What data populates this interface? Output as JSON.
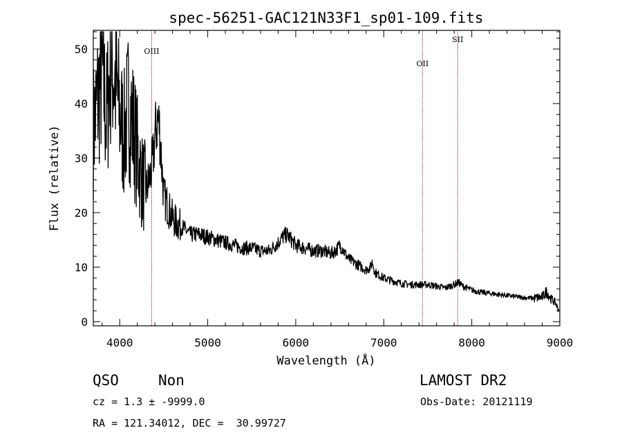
{
  "chart_data": {
    "type": "line",
    "title": "spec-56251-GAC121N33F1_sp01-109.fits",
    "xlabel": "Wavelength (Å)",
    "ylabel": "Flux (relative)",
    "xlim": [
      3700,
      9000
    ],
    "ylim": [
      0,
      55
    ],
    "x_ticks": [
      4000,
      5000,
      6000,
      7000,
      8000,
      9000
    ],
    "y_ticks": [
      0,
      10,
      20,
      30,
      40,
      50
    ],
    "grid": false,
    "line_color": "#000000",
    "series": [
      {
        "x": [
          3700,
          3750,
          3800,
          3850,
          3900,
          3950,
          4000,
          4050,
          4100,
          4150,
          4200,
          4250,
          4300,
          4350,
          4380,
          4400,
          4430,
          4450,
          4470,
          4500,
          4550,
          4600,
          4650,
          4700,
          4800,
          4900,
          5000,
          5100,
          5200,
          5300,
          5400,
          5500,
          5600,
          5700,
          5800,
          5850,
          5900,
          5950,
          6000,
          6100,
          6200,
          6300,
          6400,
          6450,
          6480,
          6500,
          6530,
          6560,
          6600,
          6700,
          6800,
          6850,
          6870,
          6900,
          7000,
          7100,
          7200,
          7300,
          7400,
          7500,
          7600,
          7700,
          7800,
          7850,
          7900,
          8000,
          8100,
          8200,
          8300,
          8400,
          8500,
          8600,
          8700,
          8800,
          8850,
          8900,
          8950,
          8990
        ],
        "y": [
          35,
          41,
          46,
          37,
          49,
          44,
          38,
          34,
          40,
          36,
          31,
          26,
          24,
          27,
          30,
          34,
          37,
          36,
          31,
          23,
          21,
          19,
          18,
          17.5,
          16,
          16,
          15.5,
          15,
          14.5,
          14,
          13.5,
          13.5,
          13,
          13,
          14.5,
          15.5,
          16,
          15,
          14,
          13.5,
          13,
          13,
          12.5,
          13,
          13.5,
          14,
          13.5,
          12.5,
          11.5,
          10.5,
          9.5,
          10,
          11,
          9,
          8,
          7.5,
          7,
          6.8,
          6.8,
          6.8,
          6.5,
          6.2,
          6.8,
          7.2,
          6.5,
          5.8,
          5.4,
          5.2,
          5,
          4.8,
          4.6,
          4.4,
          4.3,
          4.5,
          5.5,
          4.2,
          3.5,
          2
        ]
      }
    ],
    "lines": [
      {
        "x": 4363,
        "label": "OIII"
      },
      {
        "x": 7440,
        "label": "OII"
      },
      {
        "x": 7840,
        "label": "SII"
      }
    ],
    "line_marker_color": "#8b1a1a"
  },
  "info": {
    "class": "QSO",
    "subclass": "Non",
    "survey": "LAMOST DR2",
    "cz": "cz = 1.3 ± -9999.0",
    "obs_date": "Obs-Date: 20121119",
    "radec": "RA = 121.34012, DEC =  30.99727"
  }
}
